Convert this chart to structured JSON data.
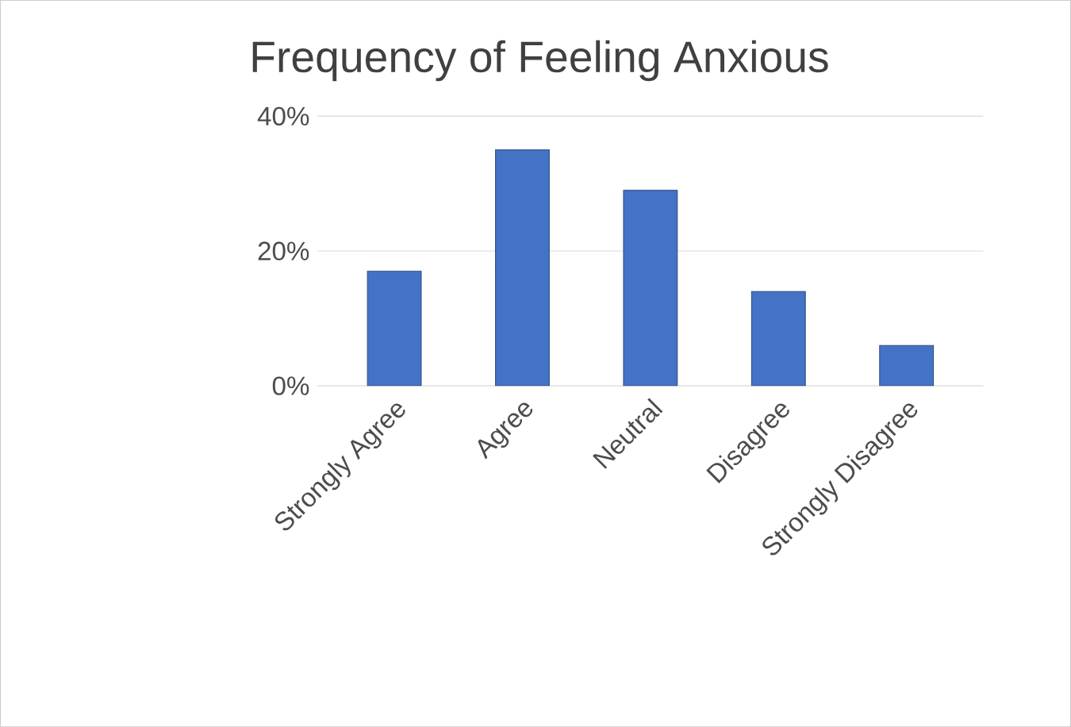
{
  "chart_data": {
    "type": "bar",
    "title": "Frequency of Feeling Anxious",
    "categories": [
      "Strongly Agree",
      "Agree",
      "Neutral",
      "Disagree",
      "Strongly Disagree"
    ],
    "values": [
      17,
      35,
      29,
      14,
      6
    ],
    "color": "#4472c4",
    "ylim": [
      0,
      40
    ],
    "yticks": [
      {
        "value": 0,
        "label": "0%"
      },
      {
        "value": 20,
        "label": "20%"
      },
      {
        "value": 40,
        "label": "40%"
      }
    ],
    "grid": "y"
  }
}
